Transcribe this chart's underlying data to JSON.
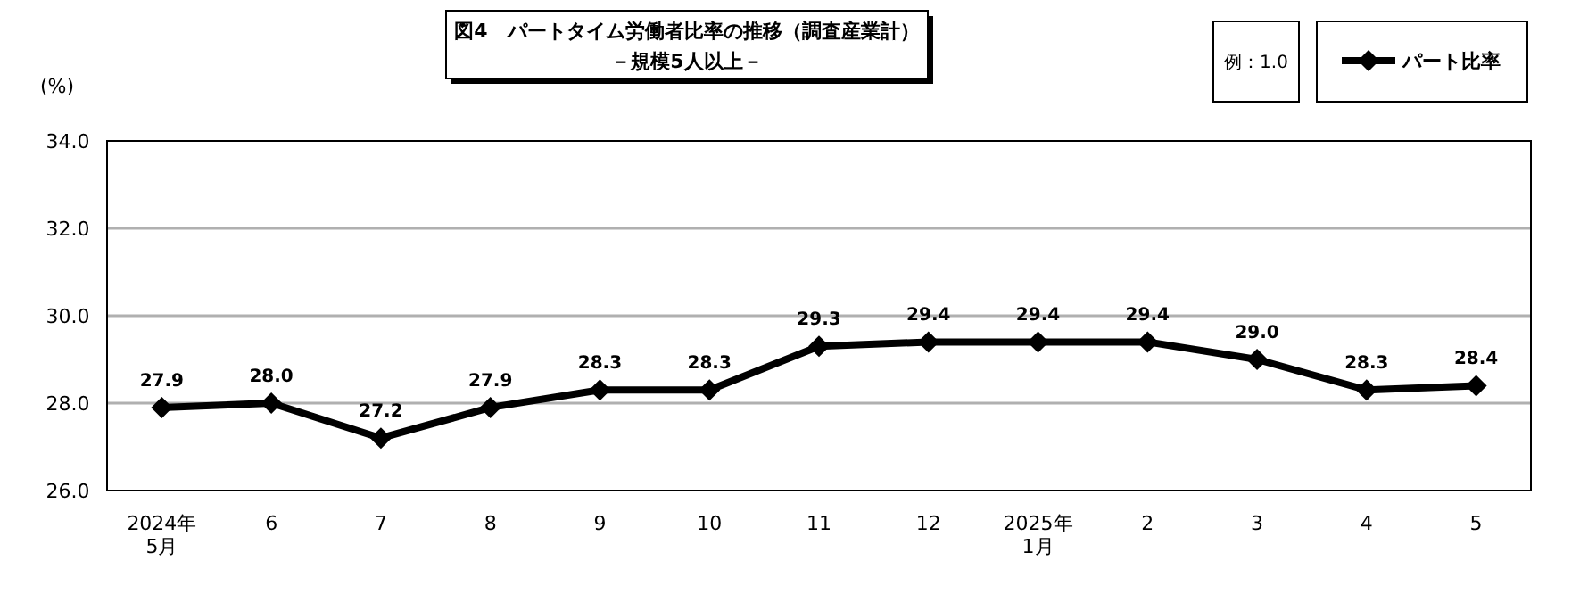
{
  "chart_data": {
    "type": "line",
    "title": "図4　パートタイム労働者比率の推移（調査産業計）",
    "subtitle": "－規模5人以上－",
    "ylabel": "(%)",
    "annotations": [
      "例：1.0"
    ],
    "categories": [
      "2024年\n5月",
      "6",
      "7",
      "8",
      "9",
      "10",
      "11",
      "12",
      "2025年\n1月",
      "2",
      "3",
      "4",
      "5"
    ],
    "series": [
      {
        "name": "パート比率",
        "color": "#000000",
        "values": [
          27.9,
          28.0,
          27.2,
          27.9,
          28.3,
          28.3,
          29.3,
          29.4,
          29.4,
          29.4,
          29.0,
          28.3,
          28.4
        ],
        "value_labels": [
          "27.9",
          "28.0",
          "27.2",
          "27.9",
          "28.3",
          "28.3",
          "29.3",
          "29.4",
          "29.4",
          "29.4",
          "29.0",
          "28.3",
          "28.4"
        ]
      }
    ],
    "ylim": [
      26,
      34
    ],
    "yticks": [
      {
        "value": 26,
        "label": "26.0"
      },
      {
        "value": 28,
        "label": "28.0"
      },
      {
        "value": 30,
        "label": "30.0"
      },
      {
        "value": 32,
        "label": "32.0"
      },
      {
        "value": 34,
        "label": "34.0"
      }
    ],
    "grid": "y",
    "legend": "top right",
    "marker": "diamond",
    "line_style": "solid"
  }
}
